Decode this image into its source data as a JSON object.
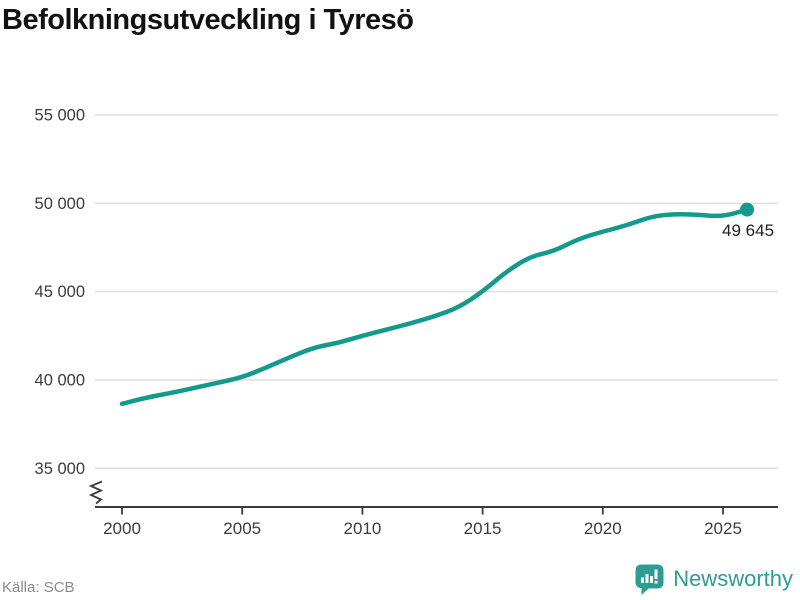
{
  "header": {
    "title": "Befolkningsutveckling i Tyresö"
  },
  "footer": {
    "source": "Källa: SCB",
    "brand": {
      "name": "Newsworthy"
    }
  },
  "colors": {
    "line": "#129a8d",
    "brand_teal": "#2d9c92",
    "grid": "#e0e0e0",
    "axis": "#3b3b3b",
    "tick_text": "#3c3c3c",
    "annotation_text": "#222222"
  },
  "chart_data": {
    "type": "line",
    "title": "Befolkningsutveckling i Tyresö",
    "xlabel": "",
    "ylabel": "",
    "x": [
      2000,
      2001,
      2002,
      2003,
      2004,
      2005,
      2006,
      2007,
      2008,
      2009,
      2010,
      2011,
      2012,
      2013,
      2014,
      2015,
      2016,
      2017,
      2018,
      2019,
      2020,
      2021,
      2022,
      2023,
      2024,
      2025,
      2026
    ],
    "values": [
      38650,
      39000,
      39250,
      39550,
      39850,
      40150,
      40700,
      41300,
      41850,
      42100,
      42500,
      42850,
      43200,
      43600,
      44100,
      45000,
      46150,
      47000,
      47300,
      48000,
      48400,
      48750,
      49250,
      49400,
      49350,
      49250,
      49645
    ],
    "end_value": 49645,
    "end_label": "49 645",
    "yticks": [
      {
        "value": 55000,
        "label": "55 000"
      },
      {
        "value": 50000,
        "label": "50 000"
      },
      {
        "value": 45000,
        "label": "45 000"
      },
      {
        "value": 40000,
        "label": "40 000"
      },
      {
        "value": 35000,
        "label": "35 000"
      }
    ],
    "xticks": [
      {
        "value": 2000,
        "label": "2000"
      },
      {
        "value": 2005,
        "label": "2005"
      },
      {
        "value": 2010,
        "label": "2010"
      },
      {
        "value": 2015,
        "label": "2015"
      },
      {
        "value": 2020,
        "label": "2020"
      },
      {
        "value": 2025,
        "label": "2025"
      }
    ],
    "xlim": [
      2000,
      2026
    ],
    "ylim": [
      35000,
      55000
    ],
    "grid": "horizontal",
    "axis_break": true,
    "legend": "none"
  }
}
